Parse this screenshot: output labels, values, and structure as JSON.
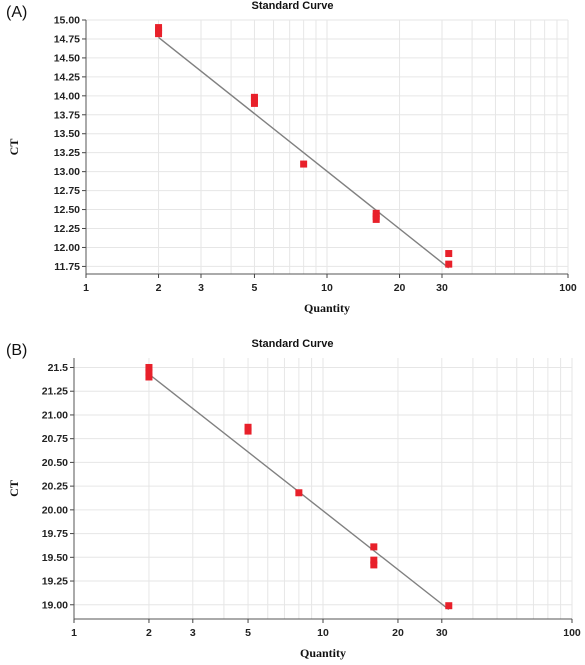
{
  "chart_data": [
    {
      "panel_label": "(A)",
      "type": "scatter",
      "title": "Standard Curve",
      "xlabel": "Quantity",
      "ylabel": "CT",
      "xscale": "log",
      "xlim": [
        1,
        100
      ],
      "ylim": [
        11.65,
        15.0
      ],
      "x_ticks": [
        "1",
        "2",
        "3",
        "5",
        "10",
        "20",
        "30",
        "100"
      ],
      "y_ticks": [
        "15.00",
        "14.75",
        "14.50",
        "14.25",
        "14.00",
        "13.75",
        "13.50",
        "13.25",
        "13.00",
        "12.75",
        "12.50",
        "12.25",
        "12.00",
        "11.75"
      ],
      "grid": true,
      "marker_color": "#e8202a",
      "line_color": "#808080",
      "points": [
        {
          "x": 2,
          "y": 14.9
        },
        {
          "x": 2,
          "y": 14.86
        },
        {
          "x": 2,
          "y": 14.82
        },
        {
          "x": 5,
          "y": 13.98
        },
        {
          "x": 5,
          "y": 13.94
        },
        {
          "x": 5,
          "y": 13.9
        },
        {
          "x": 8,
          "y": 13.1
        },
        {
          "x": 16,
          "y": 12.45
        },
        {
          "x": 16,
          "y": 12.41
        },
        {
          "x": 16,
          "y": 12.37
        },
        {
          "x": 32,
          "y": 11.92
        },
        {
          "x": 32,
          "y": 11.78
        }
      ],
      "fit_line": [
        {
          "x": 2,
          "y": 14.77
        },
        {
          "x": 32,
          "y": 11.73
        }
      ]
    },
    {
      "panel_label": "(B)",
      "type": "scatter",
      "title": "Standard Curve",
      "xlabel": "Quantity",
      "ylabel": "CT",
      "xscale": "log",
      "xlim": [
        1,
        100
      ],
      "ylim": [
        18.85,
        21.6
      ],
      "x_ticks": [
        "1",
        "2",
        "3",
        "5",
        "10",
        "20",
        "30",
        "100"
      ],
      "y_ticks": [
        "21.5",
        "21.25",
        "21.00",
        "20.75",
        "20.50",
        "20.25",
        "20.00",
        "19.75",
        "19.50",
        "19.25",
        "19.00"
      ],
      "grid": true,
      "marker_color": "#e8202a",
      "line_color": "#808080",
      "points": [
        {
          "x": 2,
          "y": 21.5
        },
        {
          "x": 2,
          "y": 21.45
        },
        {
          "x": 2,
          "y": 21.4
        },
        {
          "x": 5,
          "y": 20.87
        },
        {
          "x": 5,
          "y": 20.83
        },
        {
          "x": 8,
          "y": 20.18
        },
        {
          "x": 16,
          "y": 19.61
        },
        {
          "x": 16,
          "y": 19.47
        },
        {
          "x": 16,
          "y": 19.42
        },
        {
          "x": 32,
          "y": 18.99
        }
      ],
      "fit_line": [
        {
          "x": 2,
          "y": 21.43
        },
        {
          "x": 32,
          "y": 18.95
        }
      ]
    }
  ]
}
